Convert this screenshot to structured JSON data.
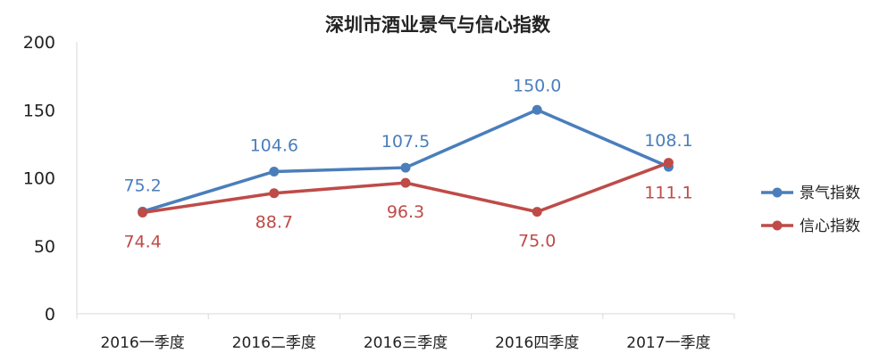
{
  "chart_data": {
    "type": "line",
    "title": "深圳市酒业景气与信心指数",
    "xlabel": "",
    "ylabel": "",
    "categories": [
      "2016一季度",
      "2016二季度",
      "2016三季度",
      "2016四季度",
      "2017一季度"
    ],
    "ylim": [
      0,
      200
    ],
    "yticks": [
      "0",
      "50",
      "100",
      "150",
      "200"
    ],
    "grid": false,
    "legend_position": "right",
    "series": [
      {
        "name": "景气指数",
        "color": "#4a7ebb",
        "values": [
          75.2,
          104.6,
          107.5,
          150.0,
          108.1
        ],
        "labels": [
          "75.2",
          "104.6",
          "107.5",
          "150.0",
          "108.1"
        ]
      },
      {
        "name": "信心指数",
        "color": "#be4b48",
        "values": [
          74.4,
          88.7,
          96.3,
          75.0,
          111.1
        ],
        "labels": [
          "74.4",
          "88.7",
          "96.3",
          "75.0",
          "111.1"
        ]
      }
    ]
  }
}
